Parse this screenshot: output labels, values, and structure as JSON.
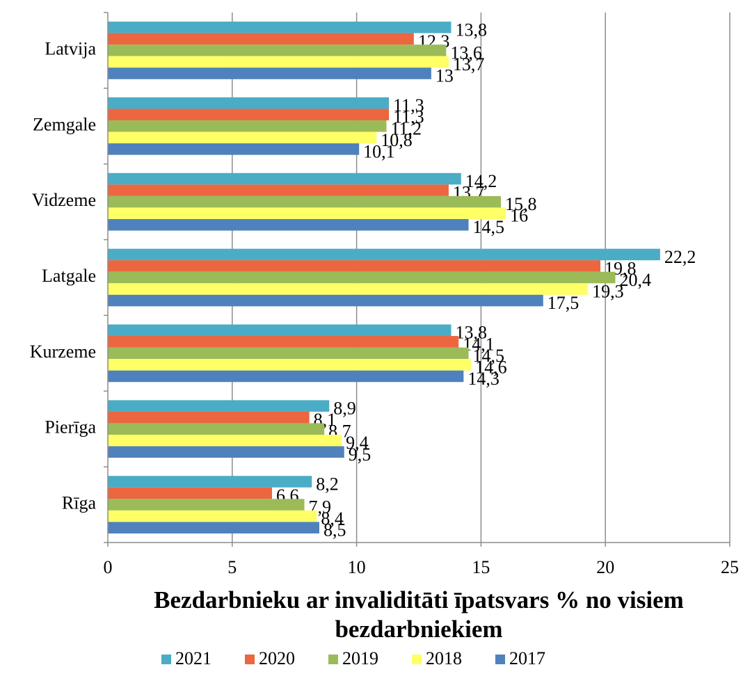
{
  "chart_data": {
    "type": "hbar",
    "x_label": "Bezdarbnieku ar invaliditāti īpatsvars % no visiem bezdarbniekiem",
    "categories": [
      "Latvija",
      "Zemgale",
      "Vidzeme",
      "Latgale",
      "Kurzeme",
      "Pierīga",
      "Rīga"
    ],
    "series": [
      {
        "name": "2021",
        "color": "#4bacc6",
        "values": [
          13.8,
          11.3,
          14.2,
          22.2,
          13.8,
          8.9,
          8.2
        ],
        "value_labels": [
          "13,8",
          "11,3",
          "14,2",
          "22,2",
          "13,8",
          "8,9",
          "8,2"
        ]
      },
      {
        "name": "2020",
        "color": "#ec6640",
        "values": [
          12.3,
          11.3,
          13.7,
          19.8,
          14.1,
          8.1,
          6.6
        ],
        "value_labels": [
          "12,3",
          "11,3",
          "13,7",
          "19,8",
          "14,1",
          "8,1",
          "6,6"
        ]
      },
      {
        "name": "2019",
        "color": "#9bbb59",
        "values": [
          13.6,
          11.2,
          15.8,
          20.4,
          14.5,
          8.7,
          7.9
        ],
        "value_labels": [
          "13,6",
          "11,2",
          "15,8",
          "20,4",
          "14,5",
          "8,7",
          "7,9"
        ]
      },
      {
        "name": "2018",
        "color": "#ffff66",
        "values": [
          13.7,
          10.8,
          16,
          19.3,
          14.6,
          9.4,
          8.4
        ],
        "value_labels": [
          "13,7",
          "10,8",
          "16",
          "19,3",
          "14,6",
          "9,4",
          "8,4"
        ]
      },
      {
        "name": "2017",
        "color": "#4f81bd",
        "values": [
          13,
          10.1,
          14.5,
          17.5,
          14.3,
          9.5,
          8.5
        ],
        "value_labels": [
          "13",
          "10,1",
          "14,5",
          "17,5",
          "14,3",
          "9,5",
          "8,5"
        ]
      }
    ],
    "xlim": [
      0,
      25
    ],
    "xticks": [
      0,
      5,
      10,
      15,
      20,
      25
    ],
    "grid": true,
    "legend": "bottom"
  }
}
